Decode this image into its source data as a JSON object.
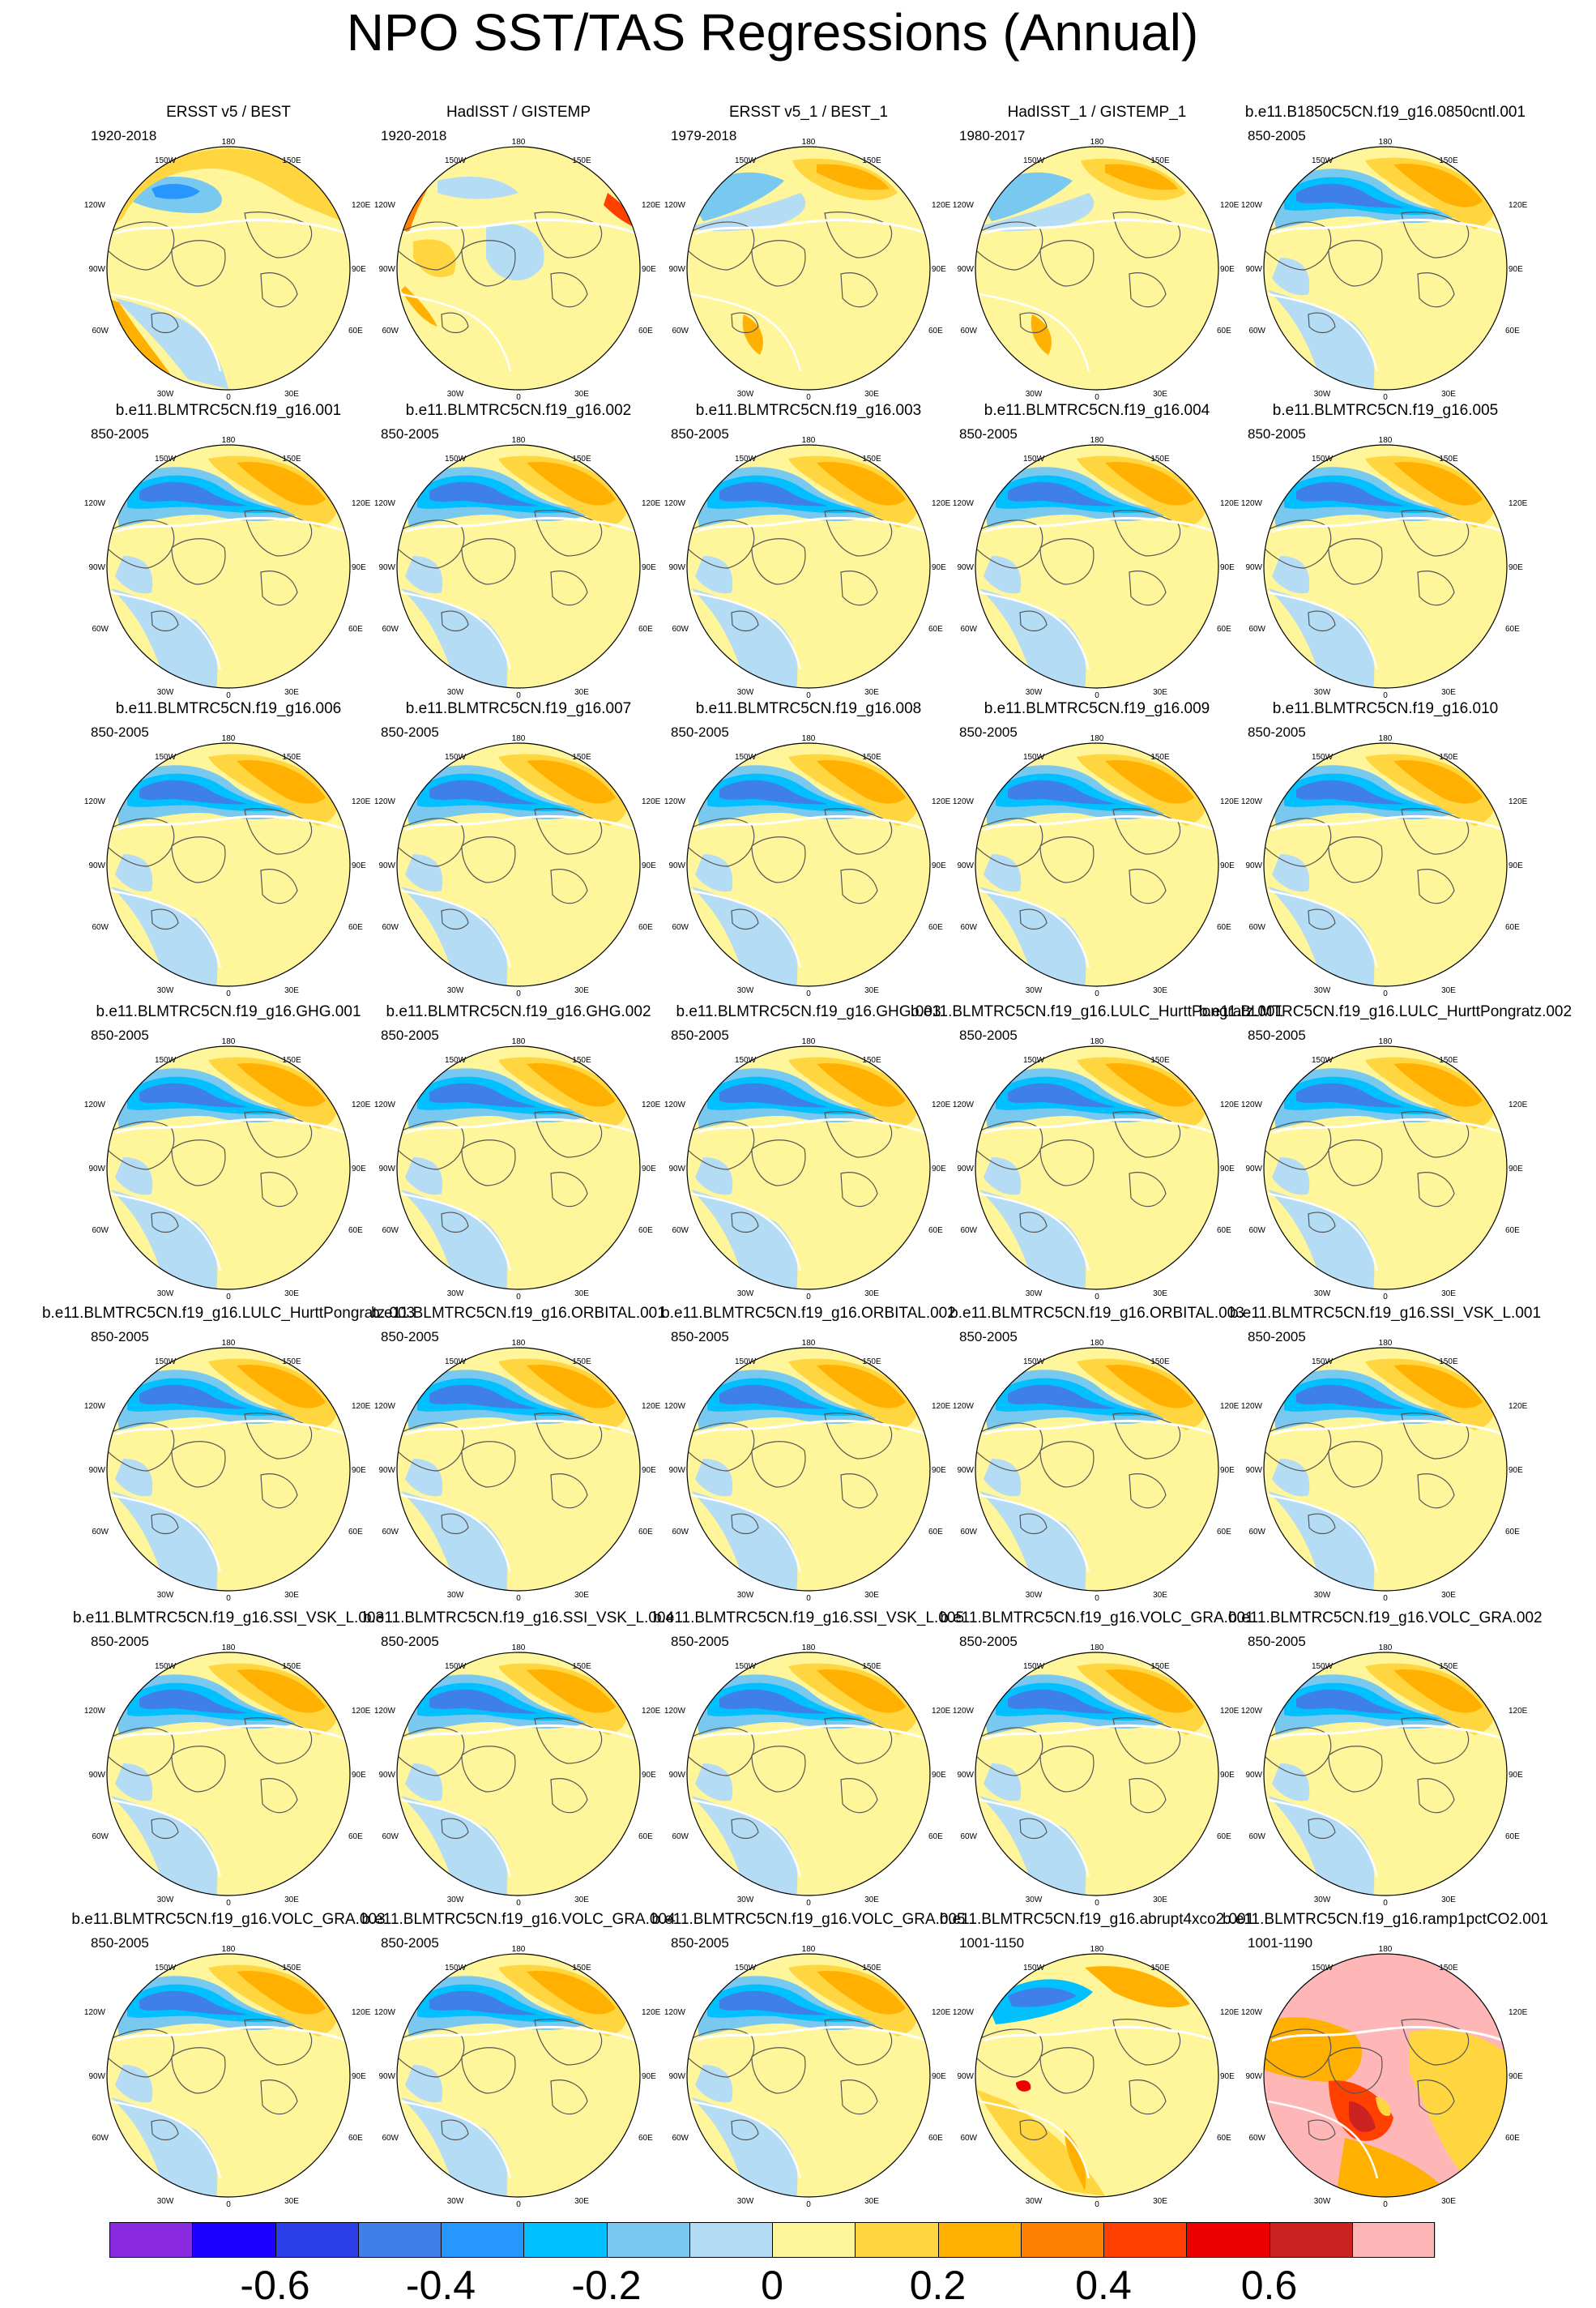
{
  "title": "NPO SST/TAS Regressions (Annual)",
  "map_labels": {
    "top": "180",
    "tl": "150W",
    "tr": "150E",
    "l1": "120W",
    "r1": "120E",
    "l2": "90W",
    "r2": "90E",
    "l3": "60W",
    "r3": "60E",
    "bl": "30W",
    "br": "30E",
    "bottom": "0"
  },
  "panels": [
    {
      "title": "ERSST v5 / BEST",
      "period": "1920-2018",
      "pattern": "obs1"
    },
    {
      "title": "HadISST / GISTEMP",
      "period": "1920-2018",
      "pattern": "obs2"
    },
    {
      "title": "ERSST v5_1 / BEST_1",
      "period": "1979-2018",
      "pattern": "obs3"
    },
    {
      "title": "HadISST_1 / GISTEMP_1",
      "period": "1980-2017",
      "pattern": "obs3"
    },
    {
      "title": "b.e11.B1850C5CN.f19_g16.0850cntl.001",
      "period": "850-2005",
      "pattern": "model"
    },
    {
      "title": "b.e11.BLMTRC5CN.f19_g16.001",
      "period": "850-2005",
      "pattern": "model"
    },
    {
      "title": "b.e11.BLMTRC5CN.f19_g16.002",
      "period": "850-2005",
      "pattern": "model"
    },
    {
      "title": "b.e11.BLMTRC5CN.f19_g16.003",
      "period": "850-2005",
      "pattern": "model"
    },
    {
      "title": "b.e11.BLMTRC5CN.f19_g16.004",
      "period": "850-2005",
      "pattern": "model"
    },
    {
      "title": "b.e11.BLMTRC5CN.f19_g16.005",
      "period": "850-2005",
      "pattern": "model"
    },
    {
      "title": "b.e11.BLMTRC5CN.f19_g16.006",
      "period": "850-2005",
      "pattern": "model"
    },
    {
      "title": "b.e11.BLMTRC5CN.f19_g16.007",
      "period": "850-2005",
      "pattern": "model"
    },
    {
      "title": "b.e11.BLMTRC5CN.f19_g16.008",
      "period": "850-2005",
      "pattern": "model"
    },
    {
      "title": "b.e11.BLMTRC5CN.f19_g16.009",
      "period": "850-2005",
      "pattern": "model"
    },
    {
      "title": "b.e11.BLMTRC5CN.f19_g16.010",
      "period": "850-2005",
      "pattern": "model"
    },
    {
      "title": "b.e11.BLMTRC5CN.f19_g16.GHG.001",
      "period": "850-2005",
      "pattern": "model"
    },
    {
      "title": "b.e11.BLMTRC5CN.f19_g16.GHG.002",
      "period": "850-2005",
      "pattern": "model"
    },
    {
      "title": "b.e11.BLMTRC5CN.f19_g16.GHG.003",
      "period": "850-2005",
      "pattern": "model"
    },
    {
      "title": "b.e11.BLMTRC5CN.f19_g16.LULC_HurttPongratz.001",
      "period": "850-2005",
      "pattern": "model"
    },
    {
      "title": "b.e11.BLMTRC5CN.f19_g16.LULC_HurttPongratz.002",
      "period": "850-2005",
      "pattern": "model"
    },
    {
      "title": "b.e11.BLMTRC5CN.f19_g16.LULC_HurttPongratz.003",
      "period": "850-2005",
      "pattern": "model"
    },
    {
      "title": "b.e11.BLMTRC5CN.f19_g16.ORBITAL.001",
      "period": "850-2005",
      "pattern": "model"
    },
    {
      "title": "b.e11.BLMTRC5CN.f19_g16.ORBITAL.002",
      "period": "850-2005",
      "pattern": "model"
    },
    {
      "title": "b.e11.BLMTRC5CN.f19_g16.ORBITAL.003",
      "period": "850-2005",
      "pattern": "model"
    },
    {
      "title": "b.e11.BLMTRC5CN.f19_g16.SSI_VSK_L.001",
      "period": "850-2005",
      "pattern": "model"
    },
    {
      "title": "b.e11.BLMTRC5CN.f19_g16.SSI_VSK_L.003",
      "period": "850-2005",
      "pattern": "model"
    },
    {
      "title": "b.e11.BLMTRC5CN.f19_g16.SSI_VSK_L.004",
      "period": "850-2005",
      "pattern": "model"
    },
    {
      "title": "b.e11.BLMTRC5CN.f19_g16.SSI_VSK_L.005",
      "period": "850-2005",
      "pattern": "model"
    },
    {
      "title": "b.e11.BLMTRC5CN.f19_g16.VOLC_GRA.001",
      "period": "850-2005",
      "pattern": "model"
    },
    {
      "title": "b.e11.BLMTRC5CN.f19_g16.VOLC_GRA.002",
      "period": "850-2005",
      "pattern": "model"
    },
    {
      "title": "b.e11.BLMTRC5CN.f19_g16.VOLC_GRA.003",
      "period": "850-2005",
      "pattern": "model"
    },
    {
      "title": "b.e11.BLMTRC5CN.f19_g16.VOLC_GRA.004",
      "period": "850-2005",
      "pattern": "model"
    },
    {
      "title": "b.e11.BLMTRC5CN.f19_g16.VOLC_GRA.005",
      "period": "850-2005",
      "pattern": "model"
    },
    {
      "title": "b.e11.BLMTRC5CN.f19_g16.abrupt4xco2.001",
      "period": "1001-1150",
      "pattern": "abrupt"
    },
    {
      "title": "b.e11.BLMTRC5CN.f19_g16.ramp1pctCO2.001",
      "period": "1001-1190",
      "pattern": "ramp"
    }
  ],
  "colorbar": {
    "colors": [
      "#8a2be2",
      "#1a00ff",
      "#2b3fe8",
      "#3f7fe8",
      "#2896ff",
      "#00c0ff",
      "#78c8f0",
      "#b4dcf5",
      "#fff59a",
      "#ffd640",
      "#ffb000",
      "#ff8000",
      "#ff4000",
      "#ee0000",
      "#cc2222",
      "#ffb6b6"
    ],
    "labels": [
      "-0.6",
      "-0.4",
      "-0.2",
      "0",
      "0.2",
      "0.4",
      "0.6"
    ]
  }
}
